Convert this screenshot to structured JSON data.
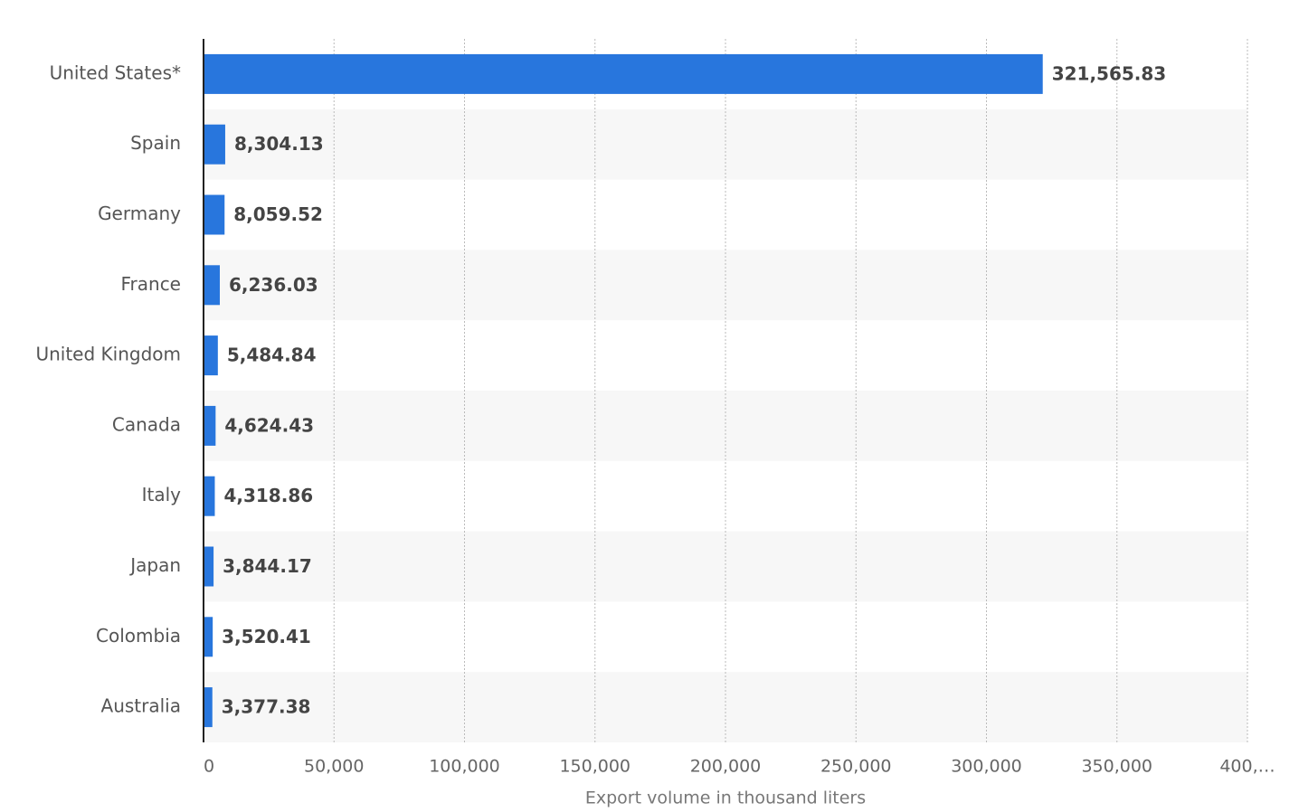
{
  "chart_data": {
    "type": "bar",
    "orientation": "horizontal",
    "x_label": "Export volume in thousand liters",
    "categories": [
      "United States*",
      "Spain",
      "Germany",
      "France",
      "United Kingdom",
      "Canada",
      "Italy",
      "Japan",
      "Colombia",
      "Australia"
    ],
    "values": [
      321565.83,
      8304.13,
      8059.52,
      6236.03,
      5484.84,
      4624.43,
      4318.86,
      3844.17,
      3520.41,
      3377.38
    ],
    "value_labels": [
      "321,565.83",
      "8,304.13",
      "8,059.52",
      "6,236.03",
      "5,484.84",
      "4,624.43",
      "4,318.86",
      "3,844.17",
      "3,520.41",
      "3,377.38"
    ],
    "color": "#2876dd",
    "xlim": [
      0,
      400000
    ],
    "xticks": [
      0,
      {
        "value": 50000,
        "label": "50,000"
      },
      {
        "value": 100000,
        "label": "100,000"
      },
      {
        "value": 150000,
        "label": "150,000"
      },
      {
        "value": 200000,
        "label": "200,000"
      },
      {
        "value": 250000,
        "label": "250,000"
      },
      {
        "value": 300000,
        "label": "300,000"
      },
      {
        "value": 350000,
        "label": "350,000"
      },
      {
        "value": 400000,
        "label": "400,…"
      }
    ],
    "grid": true
  }
}
